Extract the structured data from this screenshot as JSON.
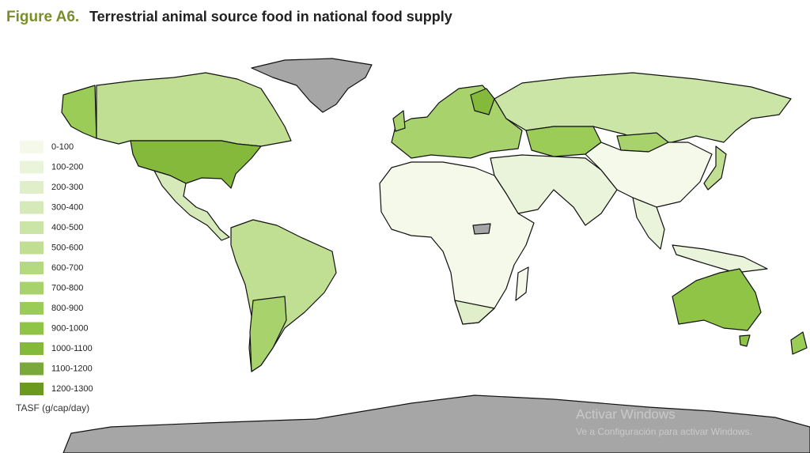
{
  "header": {
    "figure_label": "Figure A6.",
    "title": "Terrestrial animal source food in national food supply"
  },
  "legend": {
    "title": "TASF (g/cap/day)",
    "items": [
      {
        "label": "0-100",
        "color": "#f4f9ea"
      },
      {
        "label": "100-200",
        "color": "#eaf4da"
      },
      {
        "label": "200-300",
        "color": "#e0efc9"
      },
      {
        "label": "300-400",
        "color": "#d5eab8"
      },
      {
        "label": "400-500",
        "color": "#cbe5a6"
      },
      {
        "label": "500-600",
        "color": "#c0df93"
      },
      {
        "label": "600-700",
        "color": "#b4d97f"
      },
      {
        "label": "700-800",
        "color": "#a8d36c"
      },
      {
        "label": "800-900",
        "color": "#9ccc58"
      },
      {
        "label": "900-1000",
        "color": "#90c447"
      },
      {
        "label": "1000-1100",
        "color": "#85b93c"
      },
      {
        "label": "1100-1200",
        "color": "#7aa83a"
      },
      {
        "label": "1200-1300",
        "color": "#6b9a1f"
      }
    ]
  },
  "watermark": {
    "line1": "Activar Windows",
    "line2": "Ve a Configuración para activar Windows."
  }
}
